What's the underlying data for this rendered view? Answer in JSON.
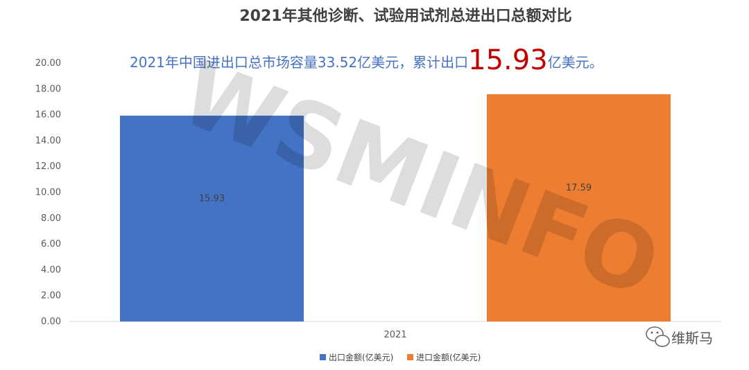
{
  "chart_data": {
    "type": "bar",
    "title": "2021年其他诊断、试验用试剂总进出口总额对比",
    "categories": [
      "2021"
    ],
    "series": [
      {
        "name": "出口金额(亿美元)",
        "values": [
          15.93
        ],
        "color": "#4472c4"
      },
      {
        "name": "进口金额(亿美元)",
        "values": [
          17.59
        ],
        "color": "#ed7d31"
      }
    ],
    "ylim": [
      0,
      20
    ],
    "yticks": [
      "0.00",
      "2.00",
      "4.00",
      "6.00",
      "8.00",
      "10.00",
      "12.00",
      "14.00",
      "16.00",
      "18.00",
      "20.00"
    ],
    "grid": false,
    "legend_position": "bottom"
  },
  "annotation": {
    "prefix": "2021年中国进出口总市场容量33.52亿美元，累计出口",
    "highlight": "15.93",
    "suffix": "亿美元。"
  },
  "watermark": "WSMINFO",
  "brand": {
    "name": "维斯马",
    "icon": "wechat-icon"
  }
}
